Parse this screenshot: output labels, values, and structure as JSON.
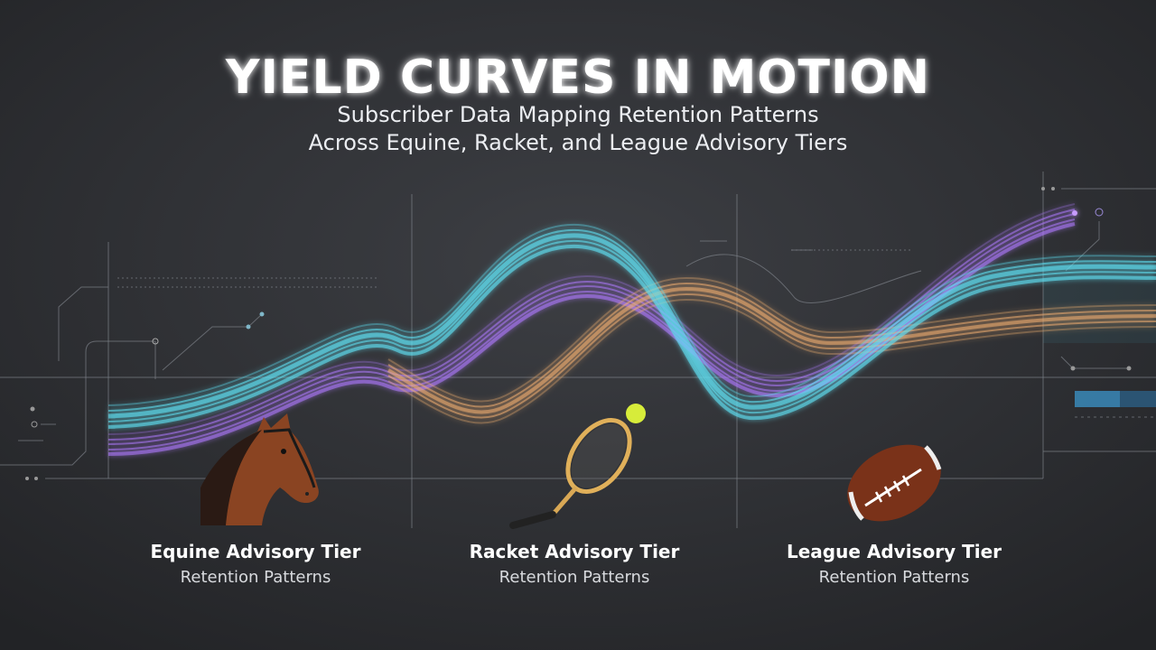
{
  "header": {
    "title": "YIELD CURVES IN MOTION",
    "subtitle": [
      "Subscriber Data Mapping Retention Patterns",
      "Across Equine, Racket, and League Advisory Tiers"
    ]
  },
  "tiers": [
    {
      "label": "Equine Advisory Tier",
      "sublabel": "Retention Patterns"
    },
    {
      "label": "Racket Advisory Tier",
      "sublabel": "Retention Patterns"
    },
    {
      "label": "League Advisory Tier",
      "sublabel": "Retention Patterns"
    }
  ]
}
